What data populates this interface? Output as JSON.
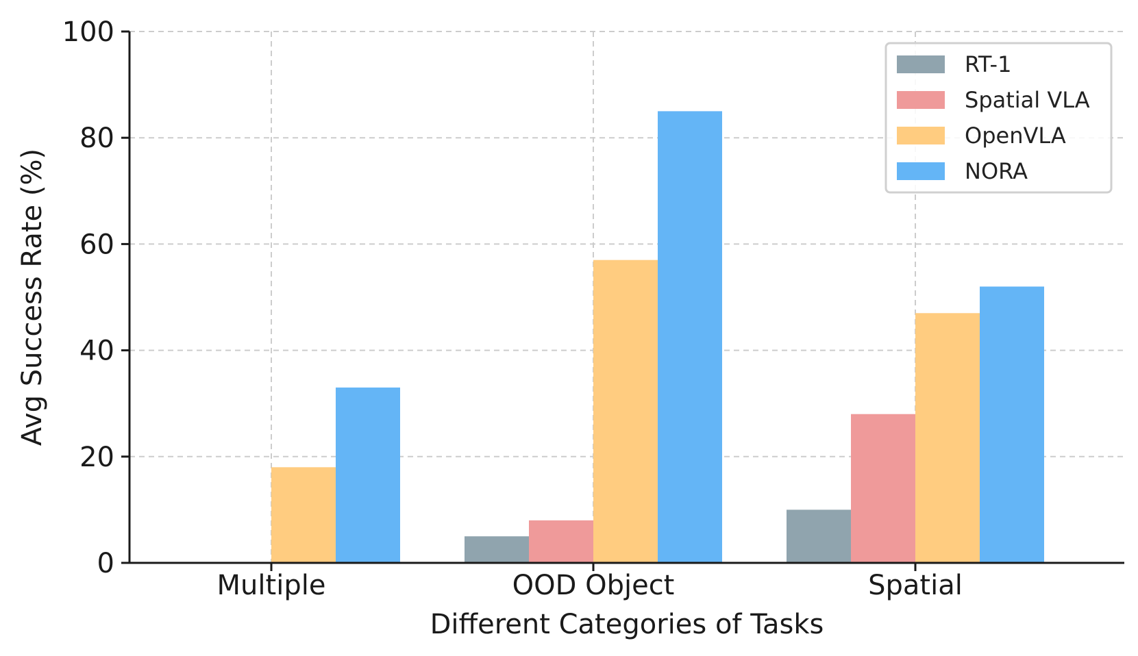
{
  "chart_data": {
    "type": "bar",
    "title": "",
    "xlabel": "Different Categories of Tasks",
    "ylabel": "Avg Success Rate (%)",
    "categories": [
      "Multiple",
      "OOD Object",
      "Spatial"
    ],
    "series": [
      {
        "name": "RT-1",
        "color": "#90a4ae",
        "values": [
          0,
          5,
          10
        ]
      },
      {
        "name": "Spatial VLA",
        "color": "#ef9a9a",
        "values": [
          0,
          8,
          28
        ]
      },
      {
        "name": "OpenVLA",
        "color": "#ffcc80",
        "values": [
          18,
          57,
          47
        ]
      },
      {
        "name": "NORA",
        "color": "#64b5f6",
        "values": [
          33,
          85,
          52
        ]
      }
    ],
    "ylim": [
      0,
      100
    ],
    "yticks": [
      "0",
      "20",
      "40",
      "60",
      "80",
      "100"
    ],
    "grid": true,
    "legend_position": "top-right"
  }
}
